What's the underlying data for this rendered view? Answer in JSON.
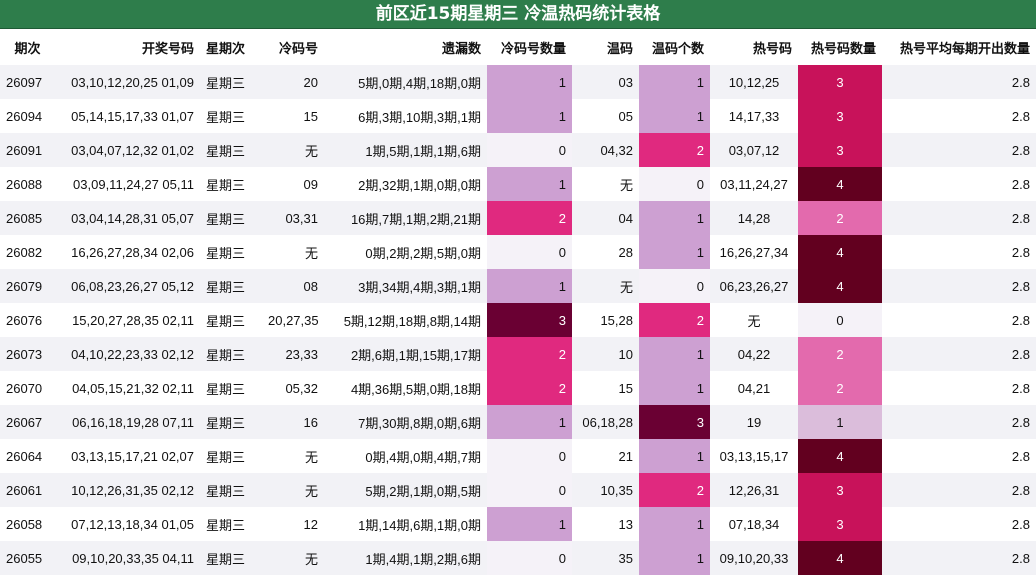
{
  "title": "前区近15期星期三 冷温热码统计表格",
  "columns": [
    "期次",
    "开奖号码",
    "星期次",
    "冷码号",
    "遗漏数",
    "冷码号数量",
    "温码",
    "温码个数",
    "热号码",
    "热号码数量",
    "热号平均每期开出数量"
  ],
  "rows": [
    {
      "period": "26097",
      "numbers": "03,10,12,20,25 01,09",
      "weekday": "星期三",
      "cold": "20",
      "miss": "5期,0期,4期,18期,0期",
      "cold_count": "1",
      "warm": "03",
      "warm_count": "1",
      "hot": "10,12,25",
      "hot_count": "3",
      "avg": "2.8"
    },
    {
      "period": "26094",
      "numbers": "05,14,15,17,33 01,07",
      "weekday": "星期三",
      "cold": "15",
      "miss": "6期,3期,10期,3期,1期",
      "cold_count": "1",
      "warm": "05",
      "warm_count": "1",
      "hot": "14,17,33",
      "hot_count": "3",
      "avg": "2.8"
    },
    {
      "period": "26091",
      "numbers": "03,04,07,12,32 01,02",
      "weekday": "星期三",
      "cold": "无",
      "miss": "1期,5期,1期,1期,6期",
      "cold_count": "0",
      "warm": "04,32",
      "warm_count": "2",
      "hot": "03,07,12",
      "hot_count": "3",
      "avg": "2.8"
    },
    {
      "period": "26088",
      "numbers": "03,09,11,24,27 05,11",
      "weekday": "星期三",
      "cold": "09",
      "miss": "2期,32期,1期,0期,0期",
      "cold_count": "1",
      "warm": "无",
      "warm_count": "0",
      "hot": "03,11,24,27",
      "hot_count": "4",
      "avg": "2.8"
    },
    {
      "period": "26085",
      "numbers": "03,04,14,28,31 05,07",
      "weekday": "星期三",
      "cold": "03,31",
      "miss": "16期,7期,1期,2期,21期",
      "cold_count": "2",
      "warm": "04",
      "warm_count": "1",
      "hot": "14,28",
      "hot_count": "2",
      "avg": "2.8"
    },
    {
      "period": "26082",
      "numbers": "16,26,27,28,34 02,06",
      "weekday": "星期三",
      "cold": "无",
      "miss": "0期,2期,2期,5期,0期",
      "cold_count": "0",
      "warm": "28",
      "warm_count": "1",
      "hot": "16,26,27,34",
      "hot_count": "4",
      "avg": "2.8"
    },
    {
      "period": "26079",
      "numbers": "06,08,23,26,27 05,12",
      "weekday": "星期三",
      "cold": "08",
      "miss": "3期,34期,4期,3期,1期",
      "cold_count": "1",
      "warm": "无",
      "warm_count": "0",
      "hot": "06,23,26,27",
      "hot_count": "4",
      "avg": "2.8"
    },
    {
      "period": "26076",
      "numbers": "15,20,27,28,35 02,11",
      "weekday": "星期三",
      "cold": "20,27,35",
      "miss": "5期,12期,18期,8期,14期",
      "cold_count": "3",
      "warm": "15,28",
      "warm_count": "2",
      "hot": "无",
      "hot_count": "0",
      "avg": "2.8"
    },
    {
      "period": "26073",
      "numbers": "04,10,22,23,33 02,12",
      "weekday": "星期三",
      "cold": "23,33",
      "miss": "2期,6期,1期,15期,17期",
      "cold_count": "2",
      "warm": "10",
      "warm_count": "1",
      "hot": "04,22",
      "hot_count": "2",
      "avg": "2.8"
    },
    {
      "period": "26070",
      "numbers": "04,05,15,21,32 02,11",
      "weekday": "星期三",
      "cold": "05,32",
      "miss": "4期,36期,5期,0期,18期",
      "cold_count": "2",
      "warm": "15",
      "warm_count": "1",
      "hot": "04,21",
      "hot_count": "2",
      "avg": "2.8"
    },
    {
      "period": "26067",
      "numbers": "06,16,18,19,28 07,11",
      "weekday": "星期三",
      "cold": "16",
      "miss": "7期,30期,8期,0期,6期",
      "cold_count": "1",
      "warm": "06,18,28",
      "warm_count": "3",
      "hot": "19",
      "hot_count": "1",
      "avg": "2.8"
    },
    {
      "period": "26064",
      "numbers": "03,13,15,17,21 02,07",
      "weekday": "星期三",
      "cold": "无",
      "miss": "0期,4期,0期,4期,7期",
      "cold_count": "0",
      "warm": "21",
      "warm_count": "1",
      "hot": "03,13,15,17",
      "hot_count": "4",
      "avg": "2.8"
    },
    {
      "period": "26061",
      "numbers": "10,12,26,31,35 02,12",
      "weekday": "星期三",
      "cold": "无",
      "miss": "5期,2期,1期,0期,5期",
      "cold_count": "0",
      "warm": "10,35",
      "warm_count": "2",
      "hot": "12,26,31",
      "hot_count": "3",
      "avg": "2.8"
    },
    {
      "period": "26058",
      "numbers": "07,12,13,18,34 01,05",
      "weekday": "星期三",
      "cold": "12",
      "miss": "1期,14期,6期,1期,0期",
      "cold_count": "1",
      "warm": "13",
      "warm_count": "1",
      "hot": "07,18,34",
      "hot_count": "3",
      "avg": "2.8"
    },
    {
      "period": "26055",
      "numbers": "09,10,20,33,35 04,11",
      "weekday": "星期三",
      "cold": "无",
      "miss": "1期,4期,1期,2期,6期",
      "cold_count": "0",
      "warm": "35",
      "warm_count": "1",
      "hot": "09,10,20,33",
      "hot_count": "4",
      "avg": "2.8"
    }
  ]
}
